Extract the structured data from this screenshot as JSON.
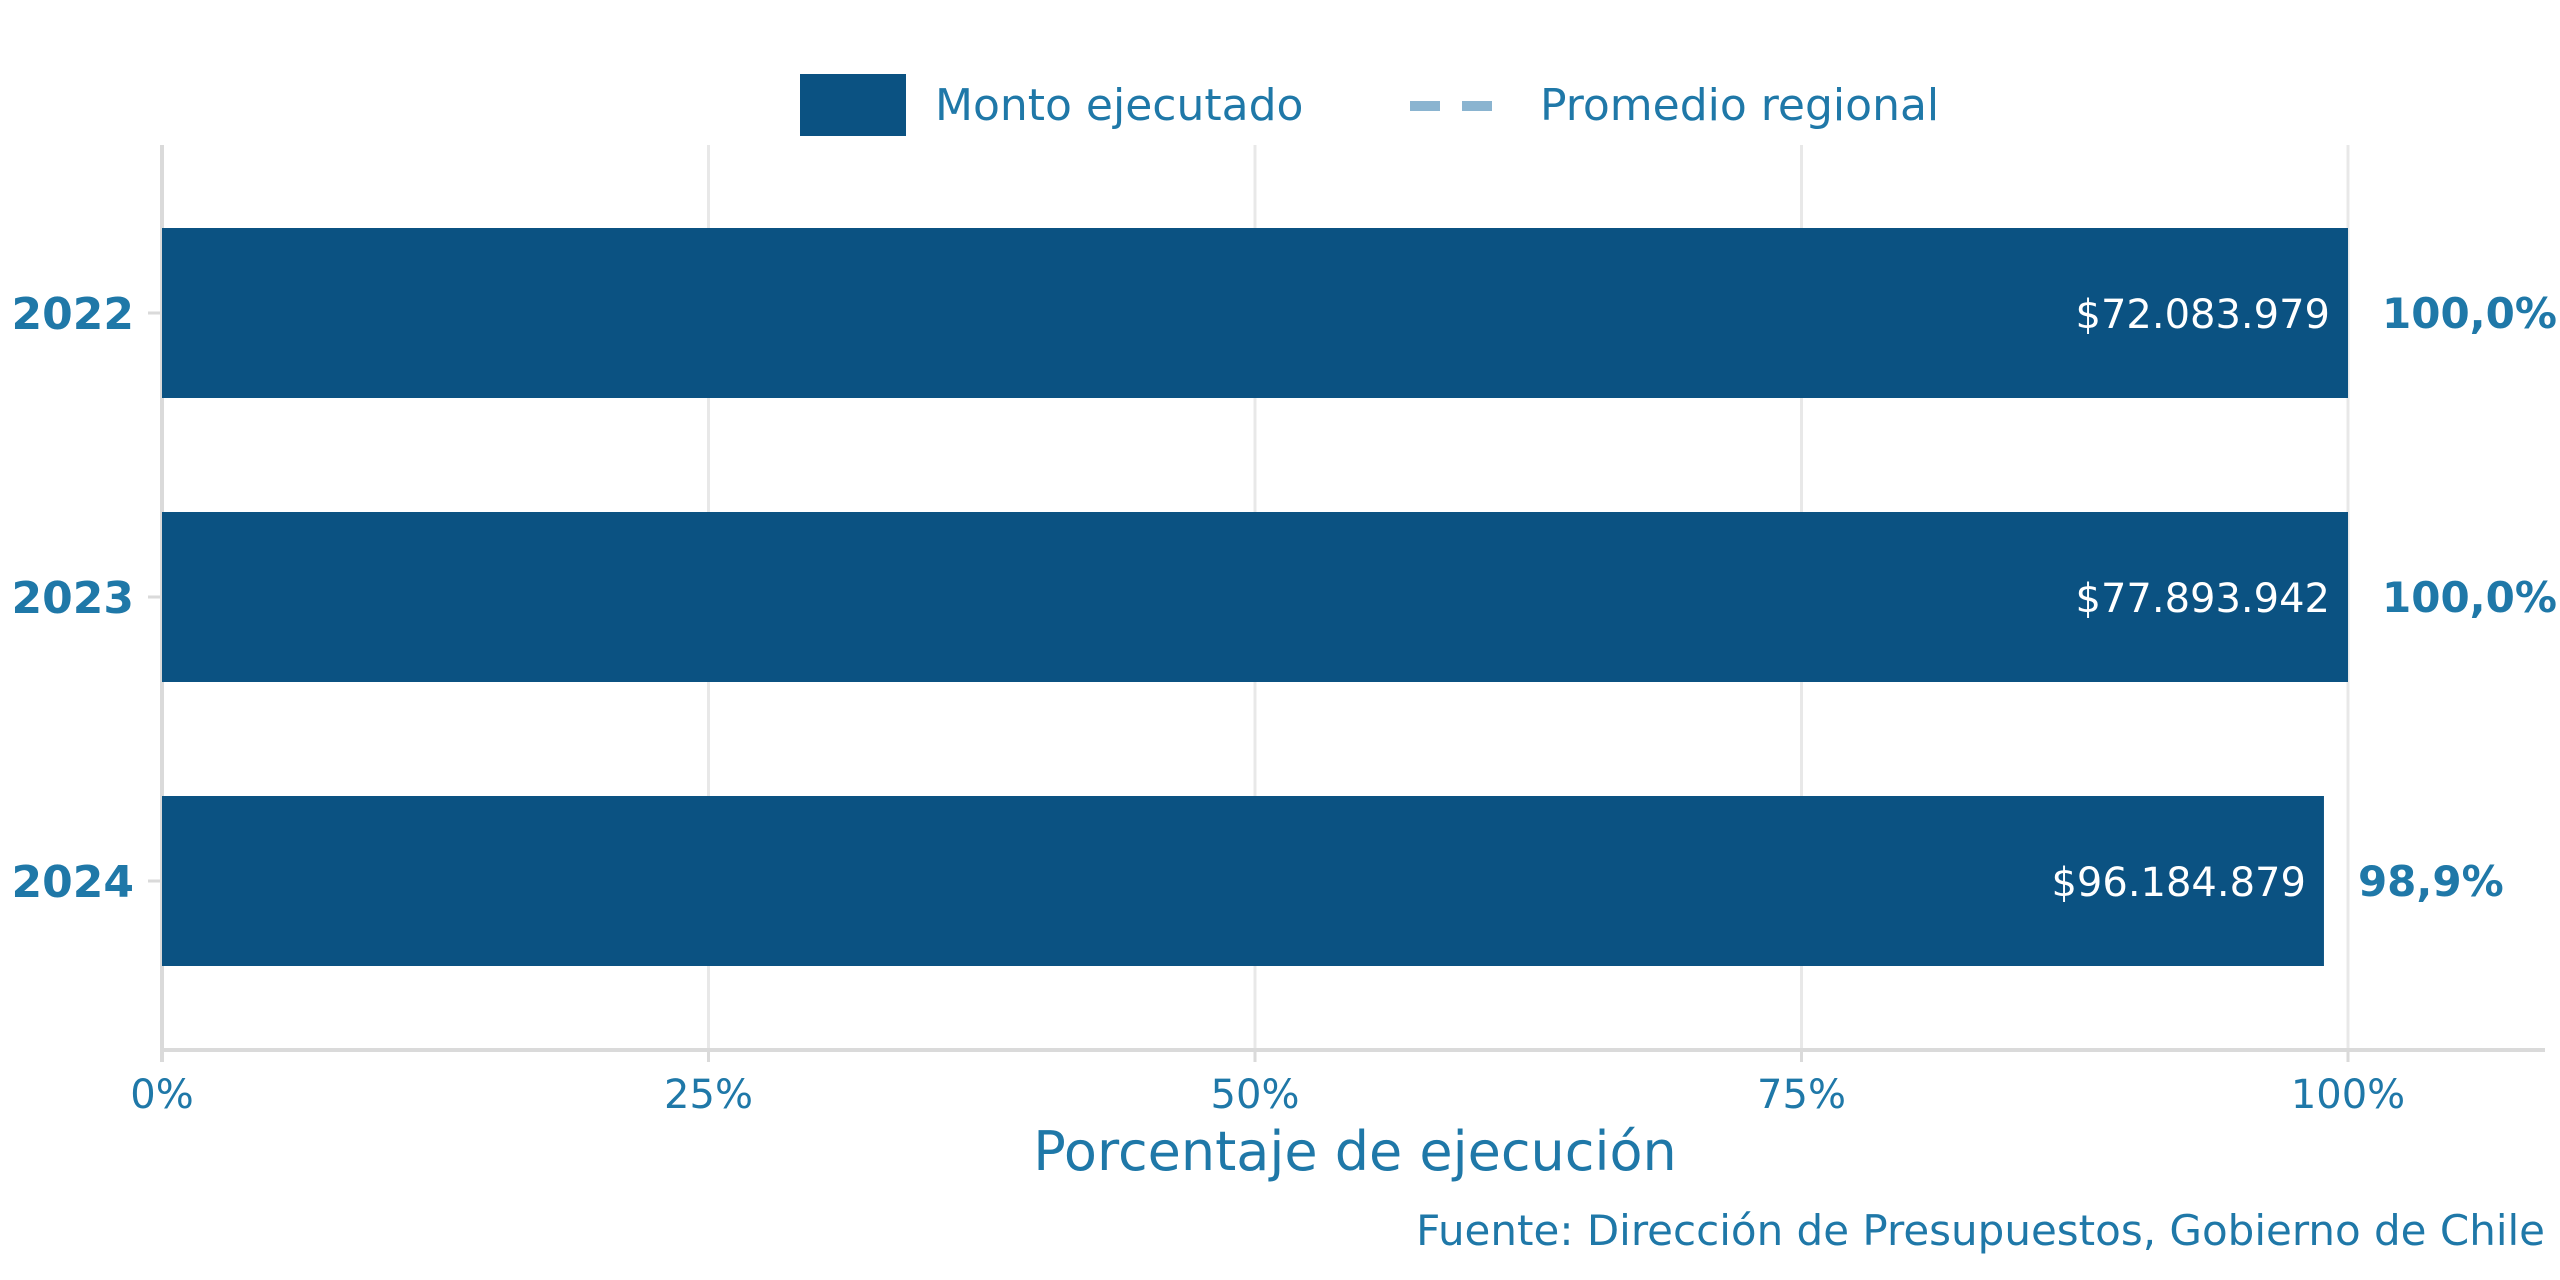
{
  "chart_data": {
    "type": "bar",
    "orientation": "horizontal",
    "categories": [
      "2022",
      "2023",
      "2024"
    ],
    "values": [
      100.0,
      100.0,
      98.9
    ],
    "value_labels": [
      "$72.083.979",
      "$77.893.942",
      "$96.184.879"
    ],
    "percent_labels": [
      "100,0%",
      "100,0%",
      "98,9%"
    ],
    "xlabel": "Porcentaje de ejecución",
    "xlim": [
      0,
      100
    ],
    "x_ticks": [
      0,
      25,
      50,
      75,
      100
    ],
    "x_tick_labels": [
      "0%",
      "25%",
      "50%",
      "75%",
      "100%"
    ],
    "legend": {
      "placement": "top",
      "items": [
        {
          "label": "Monto ejecutado",
          "style": "bar"
        },
        {
          "label": "Promedio regional",
          "style": "dashed-line"
        }
      ]
    },
    "grid": true,
    "source": "Fuente: Dirección de Presupuestos, Gobierno de Chile",
    "colors": {
      "bar": "#0b5282",
      "text": "#1f78a8",
      "dashed": "#8ab4d0",
      "grid": "#e8e8e8",
      "axis": "#dadada"
    }
  }
}
